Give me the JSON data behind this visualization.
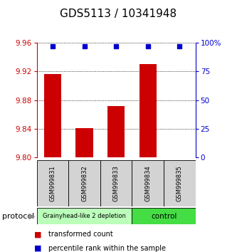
{
  "title": "GDS5113 / 10341948",
  "samples": [
    "GSM999831",
    "GSM999832",
    "GSM999833",
    "GSM999834",
    "GSM999835"
  ],
  "bar_values": [
    9.916,
    9.841,
    9.872,
    9.93,
    9.8
  ],
  "bar_base": 9.8,
  "percentile_values": [
    97,
    97,
    97,
    97,
    97
  ],
  "left_ylim": [
    9.8,
    9.96
  ],
  "left_yticks": [
    9.8,
    9.84,
    9.88,
    9.92,
    9.96
  ],
  "right_ylim": [
    0,
    100
  ],
  "right_yticks": [
    0,
    25,
    50,
    75,
    100
  ],
  "right_yticklabels": [
    "0",
    "25",
    "50",
    "75",
    "100%"
  ],
  "bar_color": "#cc0000",
  "dot_color": "#0000cc",
  "bar_width": 0.55,
  "group1_label": "Grainyhead-like 2 depletion",
  "group1_color": "#bbffbb",
  "group2_label": "control",
  "group2_color": "#44dd44",
  "group1_samples": [
    0,
    1,
    2
  ],
  "group2_samples": [
    3,
    4
  ],
  "protocol_label": "protocol",
  "legend_bar_label": "transformed count",
  "legend_dot_label": "percentile rank within the sample",
  "left_axis_color": "#cc0000",
  "right_axis_color": "#0000cc",
  "title_fontsize": 11,
  "tick_fontsize": 7.5,
  "sample_label_fontsize": 6,
  "group_label_fontsize1": 6,
  "group_label_fontsize2": 7.5,
  "legend_fontsize": 7
}
